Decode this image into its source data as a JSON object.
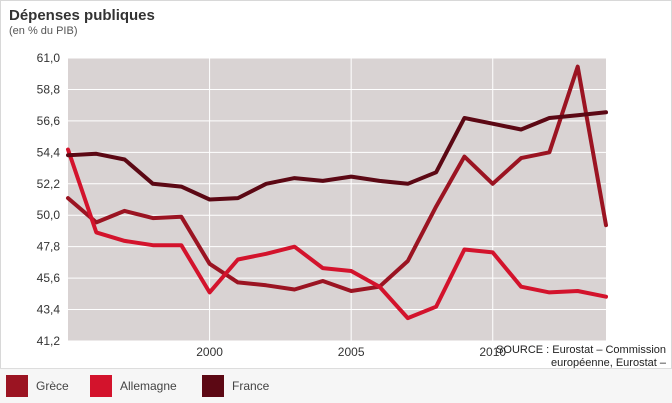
{
  "header": {
    "title": "Dépenses publiques",
    "subtitle": "(en % du PIB)"
  },
  "source": {
    "text": "SOURCE : Eurostat – Commission européenne, Eurostat – Commission européenne"
  },
  "colors": {
    "background_plot": "#d9d3d3",
    "grid": "#ffffff",
    "axis_text": "#333333"
  },
  "chart_data": {
    "type": "line",
    "title": "Dépenses publiques",
    "subtitle": "(en % du PIB)",
    "xlabel": "",
    "ylabel": "",
    "x": [
      1995,
      1996,
      1997,
      1998,
      1999,
      2000,
      2001,
      2002,
      2003,
      2004,
      2005,
      2006,
      2007,
      2008,
      2009,
      2010,
      2011,
      2012,
      2013,
      2014
    ],
    "xlim": [
      1995,
      2014
    ],
    "ylim": [
      41.2,
      61.0
    ],
    "yticks": [
      "61,0",
      "58,8",
      "56,6",
      "54,4",
      "52,2",
      "50,0",
      "47,8",
      "45,6",
      "43,4",
      "41,2"
    ],
    "ytick_values": [
      61.0,
      58.8,
      56.6,
      54.4,
      52.2,
      50.0,
      47.8,
      45.6,
      43.4,
      41.2
    ],
    "xticks": [
      "2000",
      "2005",
      "2010"
    ],
    "xtick_values": [
      2000,
      2005,
      2010
    ],
    "grid": true,
    "legend_position": "bottom",
    "series": [
      {
        "name": "Grèce",
        "color": "#9b1422",
        "values": [
          51.2,
          49.5,
          50.3,
          49.8,
          49.9,
          46.6,
          45.3,
          45.1,
          44.8,
          45.4,
          44.7,
          45.0,
          46.8,
          50.6,
          54.1,
          52.2,
          54.0,
          54.4,
          60.4,
          49.3
        ]
      },
      {
        "name": "Allemagne",
        "color": "#d3132c",
        "values": [
          54.6,
          48.8,
          48.2,
          47.9,
          47.9,
          44.6,
          46.9,
          47.3,
          47.8,
          46.3,
          46.1,
          45.0,
          42.8,
          43.6,
          47.6,
          47.4,
          45.0,
          44.6,
          44.7,
          44.3
        ]
      },
      {
        "name": "France",
        "color": "#5c0814",
        "values": [
          54.2,
          54.3,
          53.9,
          52.2,
          52.0,
          51.1,
          51.2,
          52.2,
          52.6,
          52.4,
          52.7,
          52.4,
          52.2,
          53.0,
          56.8,
          56.4,
          56.0,
          56.8,
          57.0,
          57.2
        ]
      }
    ]
  }
}
